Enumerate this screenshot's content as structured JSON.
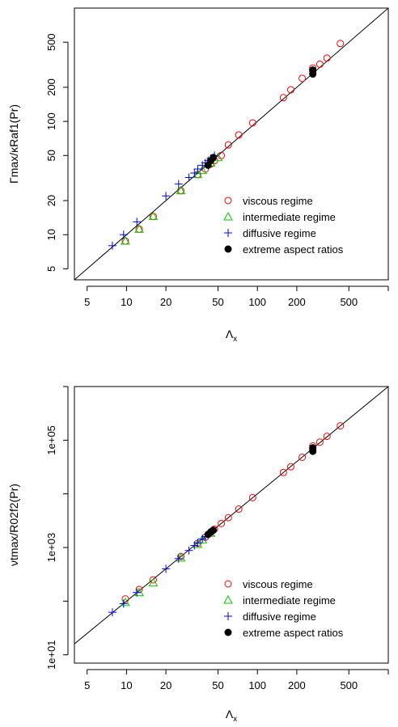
{
  "chart_data": [
    {
      "type": "scatter",
      "log_x": true,
      "log_y": true,
      "xlim": [
        4,
        1000
      ],
      "ylim": [
        4,
        1000
      ],
      "xlabel_main": "Λ",
      "xlabel_sub": "x",
      "ylabel": "Γmax/κRaf1(Pr)",
      "x_ticks": [
        {
          "value": 5,
          "label": "5"
        },
        {
          "value": 10,
          "label": "10"
        },
        {
          "value": 20,
          "label": "20"
        },
        {
          "value": 50,
          "label": "50"
        },
        {
          "value": 100,
          "label": "100"
        },
        {
          "value": 200,
          "label": "200"
        },
        {
          "value": 500,
          "label": "500"
        }
      ],
      "x_minor_ticks": [
        1000
      ],
      "y_ticks": [
        {
          "value": 5,
          "label": "5"
        },
        {
          "value": 10,
          "label": "10"
        },
        {
          "value": 20,
          "label": "20"
        },
        {
          "value": 50,
          "label": "50"
        },
        {
          "value": 100,
          "label": "100"
        },
        {
          "value": 200,
          "label": "200"
        },
        {
          "value": 500,
          "label": "500"
        }
      ],
      "reference_line": {
        "slope": 1,
        "intercept": 0
      },
      "legend_position": "bottom-right",
      "series": [
        {
          "name": "viscous regime",
          "marker": "circle-open",
          "color": "#ff0000",
          "x": [
            9.8,
            12.5,
            16,
            26,
            35,
            40,
            44,
            47,
            53,
            60,
            72,
            92,
            158,
            180,
            220,
            265,
            265,
            300,
            340,
            430
          ],
          "y": [
            8.8,
            11.2,
            14.5,
            24.5,
            34,
            38,
            42,
            45,
            50,
            62,
            76,
            97,
            162,
            190,
            240,
            278,
            296,
            320,
            362,
            487
          ]
        },
        {
          "name": "intermediate regime",
          "marker": "triangle-open",
          "color": "#00cc00",
          "x": [
            9.8,
            12.5,
            16,
            26,
            35,
            38,
            44,
            50
          ],
          "y": [
            8.8,
            11.2,
            14.5,
            24.5,
            34,
            37,
            43,
            48
          ]
        },
        {
          "name": "diffusive regime",
          "marker": "plus",
          "color": "#0000ff",
          "x": [
            7.8,
            9.5,
            12,
            20,
            25,
            30,
            33,
            35,
            38,
            40,
            42,
            44,
            47
          ],
          "y": [
            8,
            10,
            13,
            22,
            28,
            32,
            35,
            38,
            41,
            43,
            45,
            47,
            50
          ]
        },
        {
          "name": "extreme aspect ratios",
          "marker": "circle-filled",
          "color": "#000000",
          "x": [
            42,
            44,
            46,
            265,
            265
          ],
          "y": [
            41,
            45,
            48,
            262,
            284
          ]
        }
      ]
    },
    {
      "type": "scatter",
      "log_x": true,
      "log_y": true,
      "xlim": [
        4,
        1000
      ],
      "ylim": [
        7,
        1000000
      ],
      "xlabel_main": "Λ",
      "xlabel_sub": "x",
      "ylabel": "νtmax/R02f2(Pr)",
      "x_ticks": [
        {
          "value": 5,
          "label": "5"
        },
        {
          "value": 10,
          "label": "10"
        },
        {
          "value": 20,
          "label": "20"
        },
        {
          "value": 50,
          "label": "50"
        },
        {
          "value": 100,
          "label": "100"
        },
        {
          "value": 200,
          "label": "200"
        },
        {
          "value": 500,
          "label": "500"
        }
      ],
      "x_minor_ticks": [
        1000
      ],
      "y_ticks": [
        {
          "value": 10,
          "label": "1e+01"
        },
        {
          "value": 1000,
          "label": "1e+03"
        },
        {
          "value": 100000,
          "label": "1e+05"
        }
      ],
      "y_minor_ticks": [
        100,
        10000,
        1000000
      ],
      "reference_line": {
        "slope": 2,
        "intercept": 0
      },
      "legend_position": "bottom-right",
      "series": [
        {
          "name": "viscous regime",
          "marker": "circle-open",
          "color": "#ff0000",
          "x": [
            9.8,
            12.5,
            16,
            26,
            35,
            40,
            44,
            47,
            53,
            60,
            72,
            92,
            158,
            180,
            220,
            265,
            265,
            300,
            340,
            430
          ],
          "y": [
            110,
            165,
            250,
            680,
            1200,
            1550,
            1900,
            2200,
            2800,
            3600,
            5200,
            8500,
            25000,
            32000,
            48000,
            68000,
            78000,
            92000,
            118000,
            185000
          ]
        },
        {
          "name": "intermediate regime",
          "marker": "triangle-open",
          "color": "#00cc00",
          "x": [
            9.8,
            12.5,
            16,
            26,
            35,
            38,
            44
          ],
          "y": [
            95,
            145,
            220,
            640,
            1150,
            1400,
            1850
          ]
        },
        {
          "name": "diffusive regime",
          "marker": "plus",
          "color": "#0000ff",
          "x": [
            7.8,
            9.5,
            12,
            20,
            25,
            30,
            33,
            35,
            38,
            40,
            42,
            44
          ],
          "y": [
            62,
            90,
            145,
            400,
            620,
            880,
            1090,
            1220,
            1450,
            1600,
            1760,
            1950
          ]
        },
        {
          "name": "extreme aspect ratios",
          "marker": "circle-filled",
          "color": "#000000",
          "x": [
            42,
            44,
            46,
            265,
            265
          ],
          "y": [
            1750,
            1950,
            2100,
            62000,
            72000
          ]
        }
      ]
    }
  ]
}
